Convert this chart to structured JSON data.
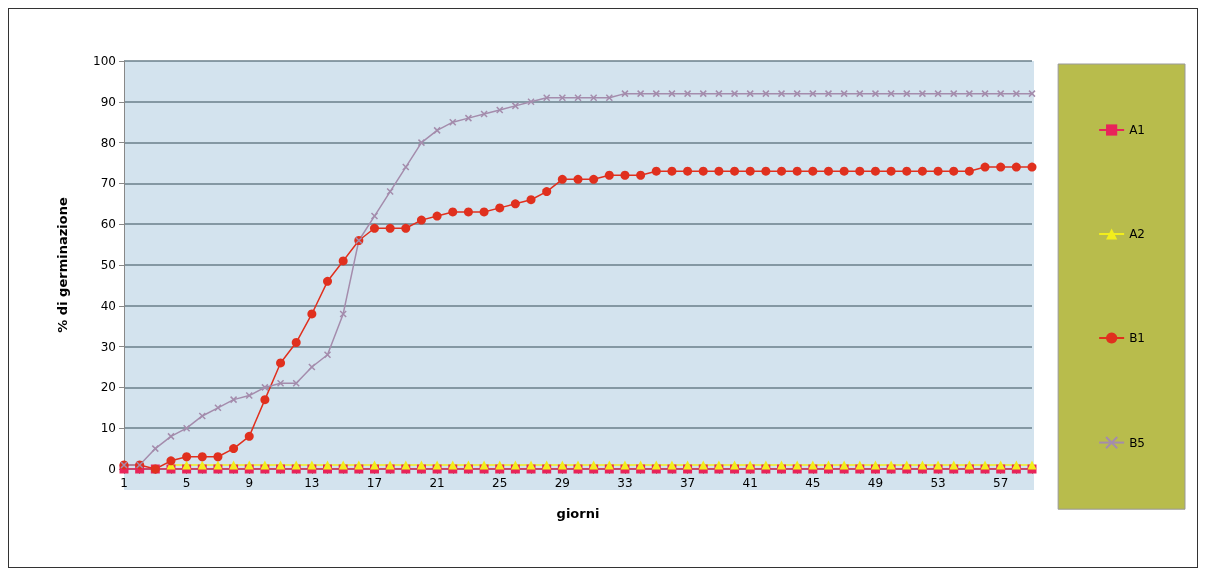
{
  "chart_data": {
    "type": "line",
    "xlabel": "giorni",
    "ylabel": "% di germinazione",
    "categories": [
      "1",
      null,
      null,
      null,
      "5",
      null,
      null,
      null,
      "9",
      null,
      null,
      null,
      "13",
      null,
      null,
      null,
      "17",
      null,
      null,
      null,
      "21",
      null,
      null,
      null,
      "25",
      null,
      null,
      null,
      "29",
      null,
      null,
      null,
      "33",
      null,
      null,
      null,
      "37",
      null,
      null,
      null,
      "41",
      null,
      null,
      null,
      "45",
      null,
      null,
      null,
      "49",
      null,
      null,
      null,
      "53",
      null,
      null,
      null,
      "57",
      null,
      null
    ],
    "series": [
      {
        "name": "A1",
        "color": "#e8245a",
        "marker": "square",
        "values": [
          0,
          0,
          0,
          0,
          0,
          0,
          0,
          0,
          0,
          0,
          0,
          0,
          0,
          0,
          0,
          0,
          0,
          0,
          0,
          0,
          0,
          0,
          0,
          0,
          0,
          0,
          0,
          0,
          0,
          0,
          0,
          0,
          0,
          0,
          0,
          0,
          0,
          0,
          0,
          0,
          0,
          0,
          0,
          0,
          0,
          0,
          0,
          0,
          0,
          0,
          0,
          0,
          0,
          0,
          0,
          0,
          0,
          0,
          0
        ]
      },
      {
        "name": "A2",
        "color": "#f2ee1c",
        "marker": "triangle",
        "values": [
          null,
          null,
          null,
          1,
          1,
          1,
          1,
          1,
          1,
          1,
          1,
          1,
          1,
          1,
          1,
          1,
          1,
          1,
          1,
          1,
          1,
          1,
          1,
          1,
          1,
          1,
          1,
          1,
          1,
          1,
          1,
          1,
          1,
          1,
          1,
          1,
          1,
          1,
          1,
          1,
          1,
          1,
          1,
          1,
          1,
          1,
          1,
          1,
          1,
          1,
          1,
          1,
          1,
          1,
          1,
          1,
          1,
          1,
          1
        ]
      },
      {
        "name": "B1",
        "color": "#e0301e",
        "marker": "circle",
        "values": [
          1,
          1,
          0,
          2,
          3,
          3,
          3,
          5,
          8,
          17,
          26,
          31,
          38,
          46,
          51,
          56,
          59,
          59,
          59,
          61,
          62,
          63,
          63,
          63,
          64,
          65,
          66,
          68,
          71,
          71,
          71,
          72,
          72,
          72,
          73,
          73,
          73,
          73,
          73,
          73,
          73,
          73,
          73,
          73,
          73,
          73,
          73,
          73,
          73,
          73,
          73,
          73,
          73,
          73,
          73,
          74,
          74,
          74,
          74
        ]
      },
      {
        "name": "B5",
        "color": "#a48cac",
        "marker": "cross",
        "values": [
          1,
          1,
          5,
          8,
          10,
          13,
          15,
          17,
          18,
          20,
          21,
          21,
          25,
          28,
          38,
          56,
          62,
          68,
          74,
          80,
          83,
          85,
          86,
          87,
          88,
          89,
          90,
          91,
          91,
          91,
          91,
          91,
          92,
          92,
          92,
          92,
          92,
          92,
          92,
          92,
          92,
          92,
          92,
          92,
          92,
          92,
          92,
          92,
          92,
          92,
          92,
          92,
          92,
          92,
          92,
          92,
          92,
          92,
          92
        ]
      }
    ],
    "ylim": [
      0,
      100
    ],
    "yticks": [
      0,
      10,
      20,
      30,
      40,
      50,
      60,
      70,
      80,
      90,
      100
    ],
    "grid": "y",
    "legend": "right"
  }
}
